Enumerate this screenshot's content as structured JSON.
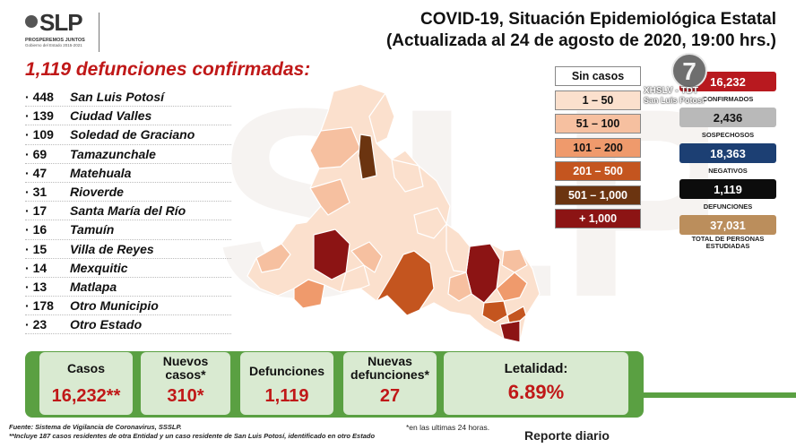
{
  "logo": {
    "brand": "SLP",
    "tagline": "PROSPEREMOS JUNTOS",
    "subline": "Gobierno del Estado 2015-2021"
  },
  "header": {
    "line1": "COVID-19, Situación Epidemiológica Estatal",
    "line2": "(Actualizada al 24 de agosto de 2020, 19:00 hrs.)"
  },
  "deaths_title": "1,119 defunciones confirmadas:",
  "municipalities": [
    {
      "count": "448",
      "name": "San Luis Potosí"
    },
    {
      "count": "139",
      "name": "Ciudad Valles"
    },
    {
      "count": "109",
      "name": "Soledad de Graciano"
    },
    {
      "count": "69",
      "name": "Tamazunchale"
    },
    {
      "count": "47",
      "name": "Matehuala"
    },
    {
      "count": "31",
      "name": "Rioverde"
    },
    {
      "count": "17",
      "name": "Santa María del Río"
    },
    {
      "count": "16",
      "name": "Tamuín"
    },
    {
      "count": "15",
      "name": "Villa de Reyes"
    },
    {
      "count": "14",
      "name": "Mexquitic"
    },
    {
      "count": "13",
      "name": "Matlapa"
    },
    {
      "count": "178",
      "name": "Otro Municipio"
    },
    {
      "count": "23",
      "name": "Otro Estado"
    }
  ],
  "legend": [
    {
      "label": "Sin casos",
      "color": "#ffffff",
      "text": "#111111"
    },
    {
      "label": "1 – 50",
      "color": "#fbe0cd",
      "text": "#111111"
    },
    {
      "label": "51 – 100",
      "color": "#f6c0a0",
      "text": "#111111"
    },
    {
      "label": "101 – 200",
      "color": "#ef9a6c",
      "text": "#111111"
    },
    {
      "label": "201 – 500",
      "color": "#c4551f",
      "text": "#ffffff"
    },
    {
      "label": "501 – 1,000",
      "color": "#6b3410",
      "text": "#ffffff"
    },
    {
      "label": "+ 1,000",
      "color": "#8c1414",
      "text": "#ffffff"
    }
  ],
  "stats": [
    {
      "value": "16,232",
      "label": "CONFIRMADOS",
      "color": "#b8191f",
      "text": "#ffffff"
    },
    {
      "value": "2,436",
      "label": "SOSPECHOSOS",
      "color": "#b9b9b9",
      "text": "#111111"
    },
    {
      "value": "18,363",
      "label": "NEGATIVOS",
      "color": "#1c3f73",
      "text": "#ffffff"
    },
    {
      "value": "1,119",
      "label": "DEFUNCIONES",
      "color": "#0c0c0c",
      "text": "#ffffff"
    },
    {
      "value": "37,031",
      "label": "TOTAL DE PERSONAS ESTUDIADAS",
      "color": "#bb8e5c",
      "text": "#ffffff"
    }
  ],
  "channel": {
    "number": "7",
    "line1": "XHSLV - TDT",
    "line2": "San Luis Potosí"
  },
  "cards": [
    {
      "label": "Casos",
      "value": "16,232**"
    },
    {
      "label": "Nuevos casos*",
      "value": "310*"
    },
    {
      "label": "Defunciones",
      "value": "1,119"
    },
    {
      "label": "Nuevas defunciones*",
      "value": "27"
    },
    {
      "label": "Letalidad:",
      "value": "6.89%"
    }
  ],
  "footer": {
    "source": "Fuente: Sistema de Vigilancia de Coronavirus, SSSLP.",
    "note": "**Incluye 187 casos residentes de otra Entidad y un caso residente de San Luis Potosí, identificado en otro Estado",
    "star_note": "*en las ultimas 24 horas.",
    "daily": "Reporte diario"
  }
}
